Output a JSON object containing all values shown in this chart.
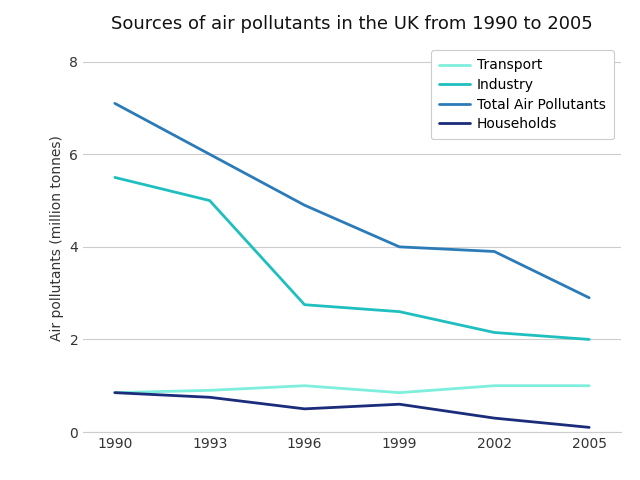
{
  "title": "Sources of air pollutants in the UK from 1990 to 2005",
  "ylabel": "Air pollutants (million tonnes)",
  "years": [
    1990,
    1993,
    1996,
    1999,
    2002,
    2005
  ],
  "series": {
    "Transport": {
      "values": [
        0.85,
        0.9,
        1.0,
        0.85,
        1.0,
        1.0
      ],
      "color": "#7EEEDD",
      "linewidth": 2.0
    },
    "Industry": {
      "values": [
        5.5,
        5.0,
        2.75,
        2.6,
        2.15,
        2.0
      ],
      "color": "#1FBFBF",
      "linewidth": 2.0
    },
    "Total Air Pollutants": {
      "values": [
        7.1,
        6.0,
        4.9,
        4.0,
        3.9,
        2.9
      ],
      "color": "#2B7BB9",
      "linewidth": 2.0
    },
    "Households": {
      "values": [
        0.85,
        0.75,
        0.5,
        0.6,
        0.3,
        0.1
      ],
      "color": "#1A2C7A",
      "linewidth": 2.0
    }
  },
  "legend_order": [
    "Transport",
    "Industry",
    "Total Air Pollutants",
    "Households"
  ],
  "ylim": [
    0,
    8.4
  ],
  "yticks": [
    0,
    2,
    4,
    6,
    8
  ],
  "xticks": [
    1990,
    1993,
    1996,
    1999,
    2002,
    2005
  ],
  "background_color": "#ffffff",
  "grid_color": "#cccccc",
  "title_fontsize": 13,
  "label_fontsize": 10,
  "tick_fontsize": 10,
  "legend_fontsize": 10
}
